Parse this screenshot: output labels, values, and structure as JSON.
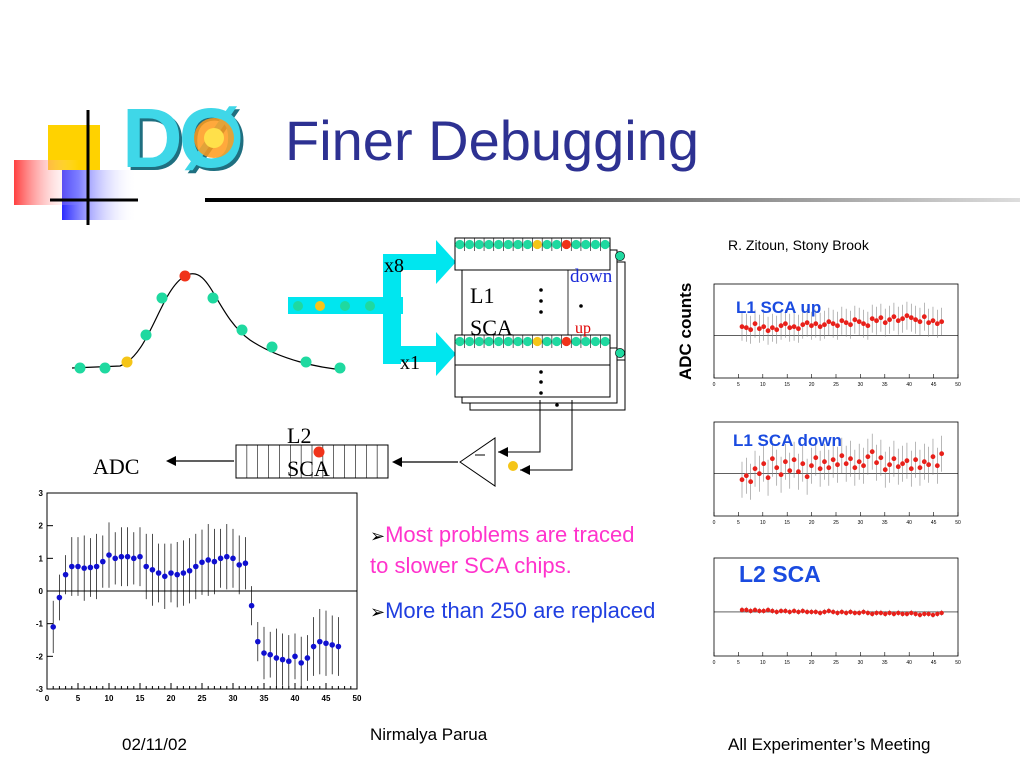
{
  "header": {
    "logo_text": "DØ",
    "title": "Finer Debugging"
  },
  "diagram": {
    "gain_high": "x8",
    "gain_low": "x1",
    "l1_sca_line1": "L1",
    "l1_sca_line2": "SCA",
    "label_down": "down",
    "label_up": "up",
    "l2_sca_line1": "L2",
    "l2_sca_line2": "SCA",
    "adc_label": "ADC",
    "colors": {
      "cyan": "#00e6ef",
      "green": "#1fd9a0",
      "red": "#f0331a",
      "yellow": "#f5c518"
    }
  },
  "credit": "R. Zitoun, Stony Brook",
  "plots": {
    "ylabel": "ADC counts",
    "l1_up": {
      "title": "L1 SCA up"
    },
    "l1_down": {
      "title": "L1 SCA down"
    },
    "l2": {
      "title": "L2 SCA"
    }
  },
  "bullets": [
    {
      "marker": "➢",
      "text_line1": "Most problems are traced",
      "text_line2": "to slower SCA chips.",
      "color": "#ff33cc"
    },
    {
      "marker": "➢",
      "text_line1": "More than 250 are replaced",
      "color": "#1f3ee0"
    }
  ],
  "footer": {
    "date": "02/11/02",
    "author": "Nirmalya Parua",
    "meeting": "All Experimenter’s Meeting"
  },
  "chart_data": {
    "type": "scatter",
    "x_ticks": [
      "0",
      "5",
      "10",
      "15",
      "20",
      "25",
      "30",
      "35",
      "40",
      "45",
      "50"
    ],
    "y_ticks": [
      "3",
      "2",
      "1",
      "0",
      "-1",
      "-2",
      "-3"
    ],
    "xlim": [
      0,
      50
    ],
    "ylim": [
      -3,
      3
    ],
    "x": [
      1,
      2,
      3,
      4,
      5,
      6,
      7,
      8,
      9,
      10,
      11,
      12,
      13,
      14,
      15,
      16,
      17,
      18,
      19,
      20,
      21,
      22,
      23,
      24,
      25,
      26,
      27,
      28,
      29,
      30,
      31,
      32,
      33,
      34,
      35,
      36,
      37,
      38,
      39,
      40,
      41,
      42,
      43,
      44,
      45,
      46,
      47
    ],
    "y": [
      -1.1,
      -0.2,
      0.5,
      0.75,
      0.75,
      0.7,
      0.72,
      0.75,
      0.9,
      1.1,
      1.0,
      1.05,
      1.05,
      1.0,
      1.05,
      0.75,
      0.65,
      0.55,
      0.45,
      0.55,
      0.5,
      0.55,
      0.62,
      0.75,
      0.88,
      0.95,
      0.9,
      1.0,
      1.05,
      1.0,
      0.8,
      0.85,
      -0.45,
      -1.55,
      -1.9,
      -1.95,
      -2.05,
      -2.1,
      -2.15,
      -2.0,
      -2.2,
      -2.05,
      -1.7,
      -1.55,
      -1.6,
      -1.65,
      -1.7
    ],
    "err": [
      0.8,
      0.7,
      0.6,
      0.9,
      0.9,
      1.0,
      0.9,
      1.0,
      0.8,
      1.0,
      0.8,
      0.9,
      0.9,
      0.8,
      0.9,
      1.0,
      1.1,
      0.9,
      1.0,
      0.9,
      1.0,
      1.0,
      1.0,
      1.0,
      1.0,
      1.1,
      1.0,
      0.9,
      1.0,
      0.9,
      0.9,
      0.8,
      0.6,
      0.6,
      0.8,
      0.7,
      0.9,
      0.8,
      0.8,
      0.7,
      0.8,
      0.7,
      0.9,
      1.0,
      1.0,
      0.9,
      0.9
    ],
    "marker_color": "#1010d0",
    "grid": false
  }
}
